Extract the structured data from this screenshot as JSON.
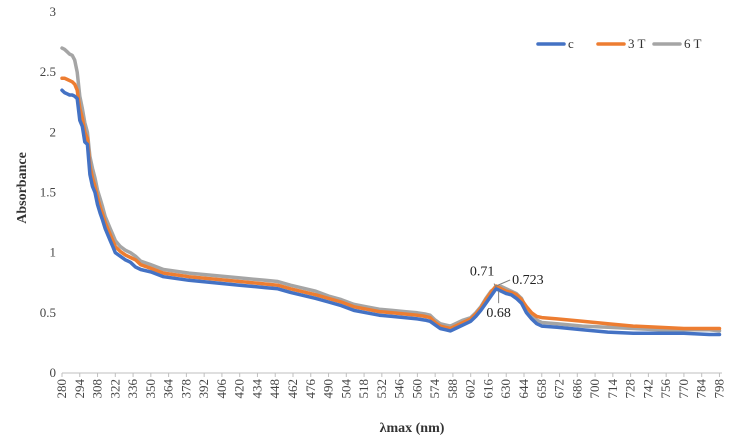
{
  "chart_data": {
    "type": "line",
    "xlabel": "λmax (nm)",
    "ylabel": "Absorbance",
    "ylim": [
      0,
      3
    ],
    "yticks": [
      "0",
      "0.5",
      "1",
      "1.5",
      "2",
      "2.5",
      "3"
    ],
    "xlim": [
      280,
      800
    ],
    "xticks": [
      "280",
      "294",
      "308",
      "322",
      "336",
      "350",
      "364",
      "378",
      "392",
      "406",
      "420",
      "434",
      "448",
      "462",
      "476",
      "490",
      "504",
      "518",
      "532",
      "546",
      "560",
      "574",
      "588",
      "602",
      "616",
      "630",
      "644",
      "658",
      "672",
      "686",
      "700",
      "714",
      "728",
      "742",
      "756",
      "770",
      "784",
      "798"
    ],
    "grid": false,
    "legend_position": "top-right",
    "series": [
      {
        "name": "c",
        "color": "#4472C4",
        "x": [
          280,
          282,
          284,
          286,
          288,
          290,
          292,
          294,
          296,
          298,
          300,
          302,
          304,
          306,
          308,
          310,
          312,
          314,
          316,
          318,
          320,
          322,
          326,
          330,
          334,
          338,
          342,
          350,
          360,
          380,
          400,
          420,
          440,
          450,
          460,
          480,
          490,
          500,
          510,
          520,
          530,
          540,
          550,
          560,
          566,
          570,
          574,
          578,
          582,
          586,
          590,
          596,
          602,
          606,
          610,
          614,
          618,
          622,
          626,
          630,
          634,
          638,
          642,
          646,
          650,
          654,
          658,
          670,
          690,
          710,
          730,
          750,
          770,
          790,
          798
        ],
        "y": [
          2.35,
          2.33,
          2.32,
          2.31,
          2.31,
          2.3,
          2.28,
          2.1,
          2.05,
          1.92,
          1.9,
          1.65,
          1.55,
          1.5,
          1.4,
          1.33,
          1.27,
          1.2,
          1.15,
          1.1,
          1.05,
          1.0,
          0.97,
          0.94,
          0.92,
          0.88,
          0.86,
          0.84,
          0.8,
          0.77,
          0.75,
          0.73,
          0.71,
          0.7,
          0.67,
          0.62,
          0.59,
          0.56,
          0.52,
          0.5,
          0.48,
          0.47,
          0.46,
          0.45,
          0.44,
          0.43,
          0.4,
          0.37,
          0.36,
          0.35,
          0.37,
          0.4,
          0.43,
          0.47,
          0.52,
          0.58,
          0.64,
          0.7,
          0.68,
          0.66,
          0.65,
          0.62,
          0.58,
          0.5,
          0.45,
          0.41,
          0.39,
          0.38,
          0.36,
          0.34,
          0.33,
          0.33,
          0.33,
          0.32,
          0.32
        ]
      },
      {
        "name": "3 T",
        "color": "#ED7D31",
        "x": [
          280,
          282,
          284,
          286,
          288,
          290,
          292,
          294,
          296,
          298,
          300,
          302,
          304,
          306,
          308,
          310,
          312,
          314,
          316,
          318,
          320,
          322,
          326,
          330,
          334,
          338,
          342,
          350,
          360,
          380,
          400,
          420,
          440,
          450,
          460,
          480,
          490,
          500,
          510,
          520,
          530,
          540,
          550,
          560,
          566,
          570,
          574,
          578,
          582,
          586,
          590,
          596,
          602,
          606,
          610,
          614,
          618,
          622,
          626,
          630,
          634,
          638,
          642,
          646,
          650,
          654,
          658,
          670,
          690,
          710,
          730,
          750,
          770,
          790,
          798
        ],
        "y": [
          2.45,
          2.45,
          2.44,
          2.43,
          2.42,
          2.4,
          2.35,
          2.2,
          2.12,
          2.0,
          1.95,
          1.72,
          1.62,
          1.55,
          1.46,
          1.38,
          1.32,
          1.25,
          1.2,
          1.15,
          1.1,
          1.05,
          1.01,
          0.98,
          0.96,
          0.94,
          0.9,
          0.87,
          0.83,
          0.8,
          0.78,
          0.76,
          0.74,
          0.73,
          0.7,
          0.65,
          0.62,
          0.59,
          0.55,
          0.53,
          0.51,
          0.5,
          0.49,
          0.48,
          0.47,
          0.46,
          0.42,
          0.39,
          0.38,
          0.37,
          0.39,
          0.42,
          0.45,
          0.49,
          0.54,
          0.61,
          0.67,
          0.723,
          0.7,
          0.68,
          0.67,
          0.65,
          0.61,
          0.55,
          0.5,
          0.47,
          0.46,
          0.45,
          0.43,
          0.41,
          0.39,
          0.38,
          0.37,
          0.37,
          0.37
        ]
      },
      {
        "name": "6 T",
        "color": "#A5A5A5",
        "x": [
          280,
          282,
          284,
          286,
          288,
          290,
          292,
          294,
          296,
          298,
          300,
          302,
          304,
          306,
          308,
          310,
          312,
          314,
          316,
          318,
          320,
          322,
          326,
          330,
          334,
          338,
          342,
          350,
          360,
          380,
          400,
          420,
          440,
          450,
          460,
          480,
          490,
          500,
          510,
          520,
          530,
          540,
          550,
          560,
          566,
          570,
          574,
          578,
          582,
          586,
          590,
          596,
          602,
          606,
          610,
          614,
          618,
          622,
          626,
          630,
          634,
          638,
          642,
          646,
          650,
          654,
          658,
          670,
          690,
          710,
          730,
          750,
          770,
          790,
          798
        ],
        "y": [
          2.7,
          2.69,
          2.67,
          2.65,
          2.64,
          2.6,
          2.5,
          2.3,
          2.2,
          2.08,
          2.0,
          1.8,
          1.7,
          1.62,
          1.52,
          1.45,
          1.38,
          1.3,
          1.25,
          1.2,
          1.15,
          1.1,
          1.05,
          1.02,
          1.0,
          0.97,
          0.93,
          0.9,
          0.86,
          0.83,
          0.81,
          0.79,
          0.77,
          0.76,
          0.73,
          0.68,
          0.64,
          0.61,
          0.57,
          0.55,
          0.53,
          0.52,
          0.51,
          0.5,
          0.49,
          0.48,
          0.44,
          0.41,
          0.4,
          0.39,
          0.41,
          0.44,
          0.46,
          0.5,
          0.55,
          0.62,
          0.68,
          0.71,
          0.72,
          0.7,
          0.68,
          0.66,
          0.62,
          0.53,
          0.48,
          0.44,
          0.42,
          0.41,
          0.39,
          0.38,
          0.37,
          0.36,
          0.36,
          0.36,
          0.35
        ]
      }
    ],
    "annotations": [
      {
        "text": "0.71",
        "x": 622,
        "y": 0.71
      },
      {
        "text": "0.723",
        "x": 622,
        "y": 0.723
      },
      {
        "text": "0.68",
        "x": 624,
        "y": 0.68
      }
    ]
  }
}
